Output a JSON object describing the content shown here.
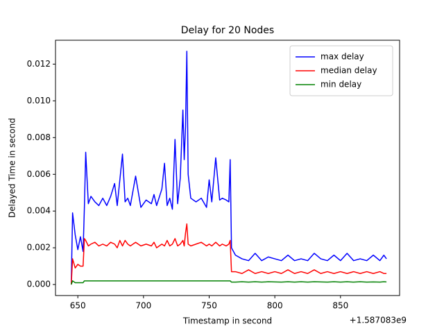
{
  "chart_data": {
    "type": "line",
    "title": "Delay for 20 Nodes",
    "x_label": "Timestamp in second",
    "y_label": "Delayed Time in second",
    "x_offset_label": "+1.587083e9",
    "x": [
      645,
      646,
      648,
      650,
      652,
      654,
      655,
      656,
      658,
      660,
      663,
      666,
      669,
      672,
      675,
      678,
      680,
      682,
      684,
      686,
      688,
      690,
      694,
      698,
      702,
      706,
      708,
      710,
      714,
      716,
      718,
      720,
      722,
      724,
      726,
      728,
      730,
      731,
      732,
      733,
      734,
      736,
      740,
      744,
      748,
      750,
      752,
      755,
      758,
      760,
      763,
      765,
      766,
      767,
      770,
      775,
      780,
      785,
      790,
      795,
      800,
      805,
      810,
      815,
      820,
      825,
      830,
      835,
      840,
      845,
      850,
      855,
      860,
      865,
      870,
      875,
      880,
      883,
      885
    ],
    "series": [
      {
        "name": "max delay",
        "color": "#0000ff",
        "values": [
          0.0,
          0.0039,
          0.0027,
          0.0019,
          0.0026,
          0.0018,
          0.0042,
          0.0072,
          0.0044,
          0.0048,
          0.0045,
          0.0043,
          0.0047,
          0.0043,
          0.0048,
          0.0055,
          0.0043,
          0.0057,
          0.0071,
          0.0045,
          0.0047,
          0.0043,
          0.0059,
          0.0042,
          0.0046,
          0.0044,
          0.0049,
          0.0043,
          0.0052,
          0.0066,
          0.0043,
          0.0047,
          0.0041,
          0.0079,
          0.0044,
          0.0058,
          0.0095,
          0.0068,
          0.0086,
          0.0127,
          0.006,
          0.0047,
          0.0045,
          0.0047,
          0.0042,
          0.0057,
          0.0045,
          0.0069,
          0.0046,
          0.0047,
          0.0046,
          0.0045,
          0.0068,
          0.002,
          0.0016,
          0.0014,
          0.0013,
          0.0017,
          0.0013,
          0.0015,
          0.0014,
          0.0013,
          0.0016,
          0.0013,
          0.0014,
          0.0013,
          0.0017,
          0.0014,
          0.0013,
          0.0016,
          0.0013,
          0.0017,
          0.0013,
          0.0014,
          0.0013,
          0.0016,
          0.0013,
          0.0016,
          0.0014
        ]
      },
      {
        "name": "median delay",
        "color": "#ff0000",
        "values": [
          0.0,
          0.0014,
          0.0009,
          0.0011,
          0.001,
          0.001,
          0.0025,
          0.0024,
          0.0021,
          0.0022,
          0.0023,
          0.0021,
          0.0022,
          0.0021,
          0.0023,
          0.0022,
          0.002,
          0.0024,
          0.0021,
          0.0024,
          0.0022,
          0.0021,
          0.0023,
          0.0021,
          0.0022,
          0.0021,
          0.0023,
          0.002,
          0.0022,
          0.0021,
          0.0024,
          0.0021,
          0.0022,
          0.0025,
          0.0021,
          0.0022,
          0.0024,
          0.0021,
          0.0028,
          0.0033,
          0.0022,
          0.0021,
          0.0022,
          0.0023,
          0.0021,
          0.0022,
          0.0021,
          0.0023,
          0.0021,
          0.0022,
          0.0021,
          0.0022,
          0.0024,
          0.0007,
          0.0007,
          0.0006,
          0.0008,
          0.0006,
          0.0007,
          0.0006,
          0.0007,
          0.0006,
          0.0008,
          0.0006,
          0.0007,
          0.0006,
          0.0008,
          0.0006,
          0.0007,
          0.0006,
          0.0007,
          0.0006,
          0.0007,
          0.0006,
          0.0007,
          0.0006,
          0.0007,
          0.0006,
          0.0006
        ]
      },
      {
        "name": "min delay",
        "color": "#008000",
        "values": [
          0.0,
          0.0002,
          0.0001,
          0.0001,
          0.0001,
          0.0001,
          0.0002,
          0.0002,
          0.0002,
          0.0002,
          0.0002,
          0.0002,
          0.0002,
          0.0002,
          0.0002,
          0.0002,
          0.0002,
          0.0002,
          0.0002,
          0.0002,
          0.0002,
          0.0002,
          0.0002,
          0.0002,
          0.0002,
          0.0002,
          0.0002,
          0.0002,
          0.0002,
          0.0002,
          0.0002,
          0.0002,
          0.0002,
          0.0002,
          0.0002,
          0.0002,
          0.0002,
          0.0002,
          0.0002,
          0.0002,
          0.0002,
          0.0002,
          0.0002,
          0.0002,
          0.0002,
          0.0002,
          0.0002,
          0.0002,
          0.0002,
          0.0002,
          0.0002,
          0.0002,
          0.0002,
          0.00013,
          0.00013,
          0.00015,
          0.00013,
          0.00015,
          0.00013,
          0.00015,
          0.00014,
          0.00013,
          0.00015,
          0.00013,
          0.00015,
          0.00013,
          0.00015,
          0.00014,
          0.00013,
          0.00015,
          0.00013,
          0.00015,
          0.00013,
          0.00015,
          0.00013,
          0.00014,
          0.00013,
          0.00015,
          0.00014
        ]
      }
    ],
    "xlim": [
      633,
      895
    ],
    "xticks": [
      650,
      700,
      750,
      800,
      850
    ],
    "ylim": [
      -0.0006,
      0.0133
    ],
    "yticks": [
      {
        "value": 0,
        "label": "0.000"
      },
      0.002,
      0.004,
      0.006,
      0.008,
      {
        "value": 0.01,
        "label": "0.010"
      },
      0.012
    ],
    "legend": "upper right"
  }
}
